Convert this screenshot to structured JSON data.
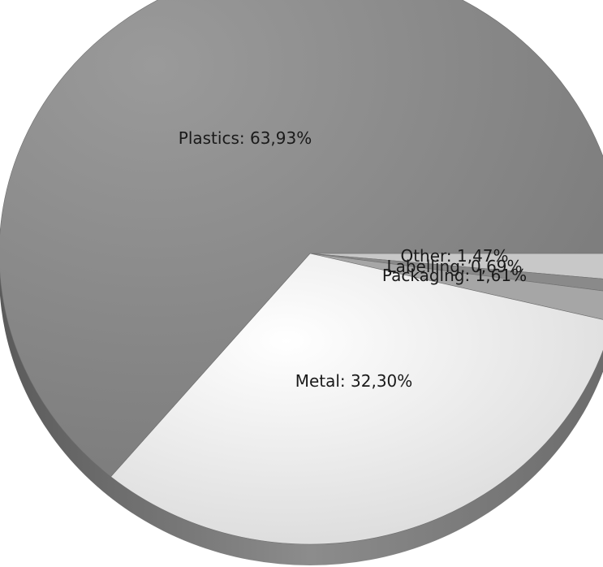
{
  "chart_data": {
    "type": "pie",
    "title": "",
    "start_angle_deg": 0,
    "slices": [
      {
        "name": "Other",
        "value": 1.47,
        "label": "Other: 1,47%",
        "color": "#c8c8c8"
      },
      {
        "name": "Labelling",
        "value": 0.69,
        "label": "Labelling: 0,69%",
        "color": "#8a8a8a"
      },
      {
        "name": "Packaging",
        "value": 1.61,
        "label": "Packaging: 1,61%",
        "color": "#a6a6a6"
      },
      {
        "name": "Metal",
        "value": 32.3,
        "label": "Metal: 32,30%",
        "color": "#ececec"
      },
      {
        "name": "Plastics",
        "value": 63.93,
        "label": "Plastics: 63,93%",
        "color": "#8e8e8e"
      }
    ],
    "style": "3d",
    "legend": "none"
  }
}
